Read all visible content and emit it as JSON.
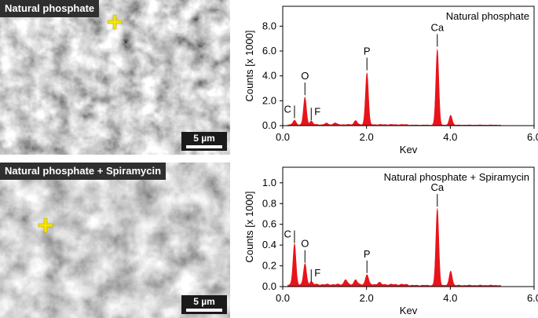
{
  "panels": [
    {
      "sem": {
        "label": "Natural phosphate",
        "scale_label": "5 µm"
      },
      "chart_data": {
        "type": "area",
        "title": "Natural phosphate",
        "xlabel": "Kev",
        "ylabel": "Counts [x 1000]",
        "xlim": [
          0,
          6
        ],
        "ylim": [
          0,
          9.6
        ],
        "xticks": [
          "0.0",
          "2.0",
          "4.0",
          "6.0"
        ],
        "yticks": [
          "0.0",
          "2.0",
          "4.0",
          "6.0",
          "8.0"
        ],
        "xtick_values": [
          0,
          2,
          4,
          6
        ],
        "ytick_values": [
          0,
          2,
          4,
          6,
          8
        ],
        "color": "#e8141b",
        "peaks": [
          {
            "label": "C",
            "x": 0.28,
            "y": 0.35
          },
          {
            "label": "O",
            "x": 0.53,
            "y": 2.2
          },
          {
            "label": "F",
            "x": 0.68,
            "y": 0.3
          },
          {
            "label": "P",
            "x": 2.01,
            "y": 4.2
          },
          {
            "label": "Ca",
            "x": 3.69,
            "y": 6.1
          }
        ],
        "minor_peaks": [
          {
            "x": 4.01,
            "y": 0.8
          },
          {
            "x": 1.74,
            "y": 0.35
          },
          {
            "x": 1.04,
            "y": 0.12
          },
          {
            "x": 1.25,
            "y": 0.15
          }
        ],
        "background": 0.08
      }
    },
    {
      "sem": {
        "label": "Natural phosphate + Spiramycin",
        "scale_label": "5 µm"
      },
      "chart_data": {
        "type": "area",
        "title": "Natural phosphate + Spiramycin",
        "xlabel": "Kev",
        "ylabel": "Counts [x 1000]",
        "xlim": [
          0,
          6
        ],
        "ylim": [
          0,
          1.15
        ],
        "xticks": [
          "0.0",
          "2.0",
          "4.0",
          "6.0"
        ],
        "yticks": [
          "0.0",
          "0.2",
          "0.4",
          "0.6",
          "0.8",
          "1.0"
        ],
        "xtick_values": [
          0,
          2,
          4,
          6
        ],
        "ytick_values": [
          0,
          0.2,
          0.4,
          0.6,
          0.8,
          1.0
        ],
        "color": "#e8141b",
        "peaks": [
          {
            "label": "C",
            "x": 0.28,
            "y": 0.39
          },
          {
            "label": "O",
            "x": 0.53,
            "y": 0.2
          },
          {
            "label": "F",
            "x": 0.68,
            "y": 0.03
          },
          {
            "label": "P",
            "x": 2.01,
            "y": 0.1
          },
          {
            "label": "Ca",
            "x": 3.69,
            "y": 0.74
          }
        ],
        "minor_peaks": [
          {
            "x": 4.01,
            "y": 0.14
          },
          {
            "x": 1.5,
            "y": 0.05
          },
          {
            "x": 1.74,
            "y": 0.05
          },
          {
            "x": 2.3,
            "y": 0.02
          }
        ],
        "background": 0.02
      }
    }
  ]
}
